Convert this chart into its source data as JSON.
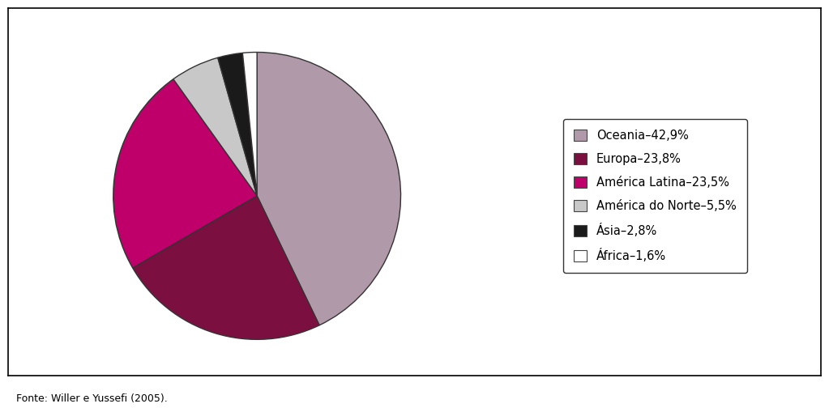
{
  "labels": [
    "Oceania",
    "Europa",
    "América Latina",
    "América do Norte",
    "Ásia",
    "África"
  ],
  "values": [
    42.9,
    23.8,
    23.5,
    5.5,
    2.8,
    1.6
  ],
  "colors": [
    "#b09aaa",
    "#7b1040",
    "#c0006a",
    "#c8c8c8",
    "#1a1a1a",
    "#ffffff"
  ],
  "legend_entries": [
    "Oceania–4 2,9%",
    "Europa–23,8%",
    "América Latina–23,5%",
    "América do Norte–5,5%",
    "Ásia–2,8%",
    "África–1,6%"
  ],
  "source_text": "Fonte: Willer e Yussefi (2005).",
  "start_angle": 90,
  "figure_width": 10.23,
  "figure_height": 5.04,
  "background_color": "#ffffff"
}
